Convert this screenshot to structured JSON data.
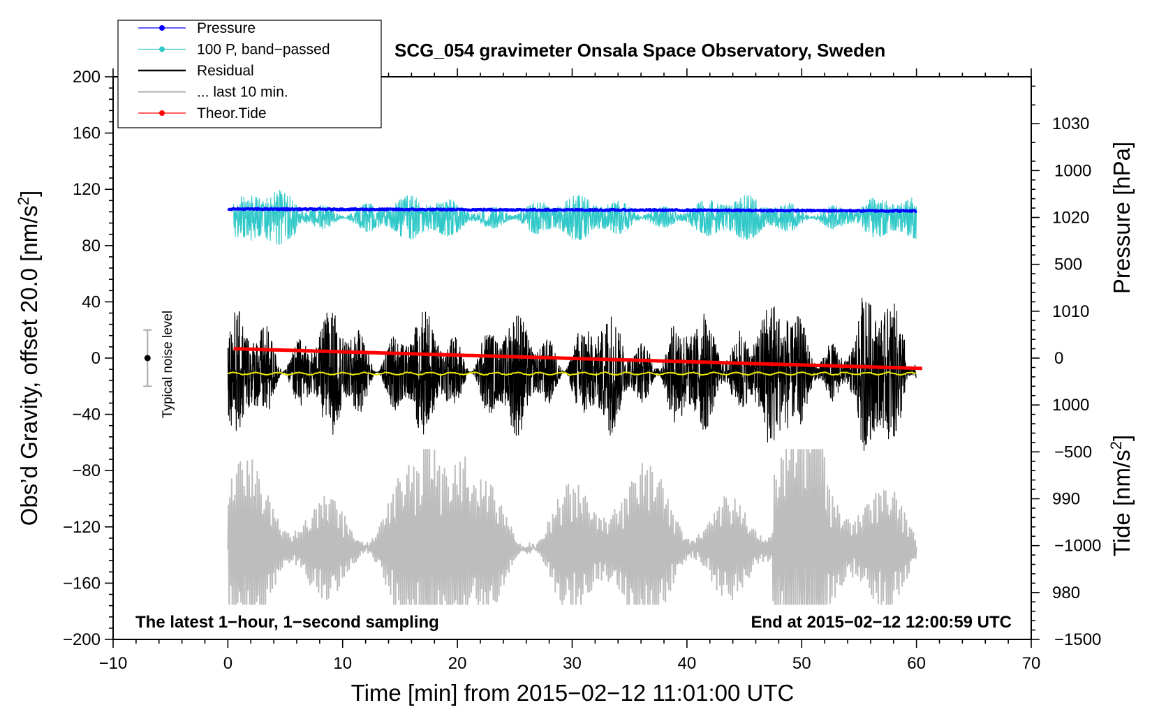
{
  "chart_data": {
    "type": "line",
    "title": "SCG_054 gravimeter Onsala Space Observatory, Sweden",
    "xlabel": "Time [min] from 2015−02−12 11:01:00 UTC",
    "ylabel_left": "Obs’d Gravity, offset 20.0 [nm/s",
    "ylabel_left_sup": "2",
    "ylabel_left_end": "]",
    "ylabel_pressure": "Pressure [hPa]",
    "ylabel_tide": "Tide [nm/s",
    "ylabel_tide_sup": "2",
    "ylabel_tide_end": "]",
    "xlim": [
      -10,
      70
    ],
    "ylim": [
      -200,
      200
    ],
    "pressure_range": [
      975,
      1035
    ],
    "tide_range": [
      -1500,
      1500
    ],
    "x_ticks": [
      -10,
      0,
      10,
      20,
      30,
      40,
      50,
      60,
      70
    ],
    "x_tick_labels": [
      "−10",
      "0",
      "10",
      "20",
      "30",
      "40",
      "50",
      "60",
      "70"
    ],
    "y_ticks": [
      200,
      160,
      120,
      80,
      40,
      0,
      -40,
      -80,
      -120,
      -160,
      -200
    ],
    "y_tick_labels": [
      "200",
      "160",
      "120",
      "80",
      "40",
      "0",
      "−40",
      "−80",
      "−120",
      "−160",
      "−200"
    ],
    "pressure_ticks": [
      1030,
      1020,
      1010,
      1000,
      990,
      980
    ],
    "pressure_tick_labels": [
      "1030",
      "1020",
      "1010",
      "1000",
      "990",
      "980"
    ],
    "tide_ticks": [
      1000,
      500,
      0,
      -500,
      -1000,
      -1500
    ],
    "tide_tick_labels": [
      "1000",
      "500",
      "0",
      "−500",
      "−1000",
      "−1500"
    ],
    "note_left": "The latest 1−hour, 1−second sampling",
    "note_right": "End at 2015−02−12 12:00:59 UTC",
    "noise_label": "Typical noise level",
    "noise_bar": {
      "x": -7,
      "center": 0,
      "low": -20,
      "high": 20
    },
    "legend": [
      {
        "label": "Pressure",
        "color": "#0000ff",
        "marker": true
      },
      {
        "label": "100 P, band−passed",
        "color": "#30c8c8",
        "marker": true
      },
      {
        "label": "Residual",
        "color": "#000000",
        "marker": false
      },
      {
        "label": "... last 10 min.",
        "color": "#bdbdbd",
        "marker": false
      },
      {
        "label": "Theor.Tide",
        "color": "#ff0000",
        "marker": true
      }
    ],
    "series": [
      {
        "name": "Pressure",
        "color": "#0000ff",
        "axis": "pressure",
        "x_start": 0,
        "x_end": 60,
        "start": 1020.9,
        "end": 1020.7,
        "noise": 0.15
      },
      {
        "name": "100 P, band−passed",
        "color": "#30c8c8",
        "axis": "left",
        "x_start": 0.5,
        "x_end": 60,
        "center": 100,
        "amplitude": 14
      },
      {
        "name": "Residual",
        "color": "#000000",
        "axis": "left",
        "x_start": 0,
        "x_end": 60,
        "center": -10,
        "amplitude": 45
      },
      {
        "name": "Residual smoothed",
        "color": "#e8e800",
        "axis": "left",
        "x_start": 0,
        "x_end": 60,
        "center": -11
      },
      {
        "name": "... last 10 min.",
        "color": "#bdbdbd",
        "axis": "left",
        "x_start": 0,
        "x_end": 60,
        "center": -135,
        "amplitude": 55
      },
      {
        "name": "Theor.Tide",
        "color": "#ff0000",
        "axis": "tide",
        "x_start": 0.5,
        "x_end": 60.5,
        "start": 50,
        "end": -55
      }
    ]
  }
}
